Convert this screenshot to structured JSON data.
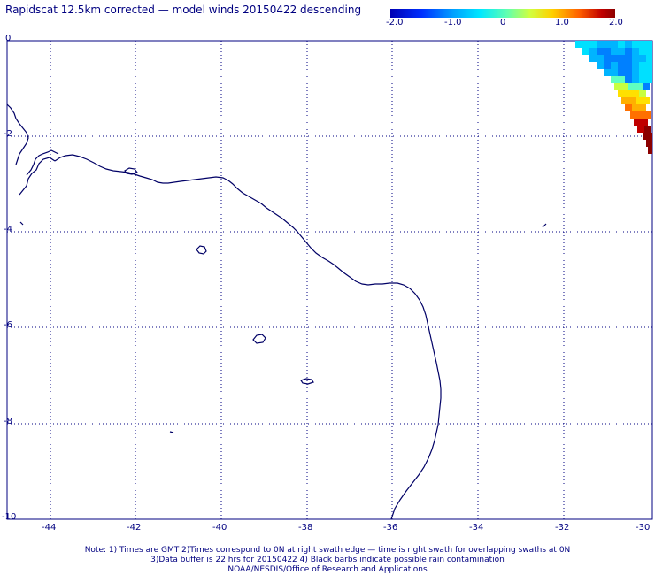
{
  "header": {
    "title": "Rapidscat 12.5km corrected — model winds 20150422 descending"
  },
  "colorbar": {
    "ticks": [
      "-2.0",
      "-1.0",
      "0",
      "1.0",
      "2.0"
    ]
  },
  "map": {
    "lon_ticks": [
      "-44",
      "-42",
      "-40",
      "-38",
      "-36",
      "-34",
      "-32",
      "-30"
    ],
    "lat_ticks": [
      "0",
      "-2",
      "-4",
      "-6",
      "-8",
      "-10"
    ],
    "swath_colors": [
      "#00e0ff",
      "#00b4ff",
      "#0080ff",
      "#60ffc0",
      "#c8ff40",
      "#ffe000",
      "#ffb000",
      "#ff7000",
      "#c00000",
      "#8b0000"
    ]
  },
  "notes": {
    "line1": "Note: 1) Times are GMT 2)Times correspond to 0N at right swath edge — time is right swath for overlapping swaths at 0N",
    "line2": "3)Data buffer is 22 hrs for 20150422 4) Black barbs indicate possible rain contamination",
    "line3": "NOAA/NESDIS/Office of Research and Applications"
  }
}
